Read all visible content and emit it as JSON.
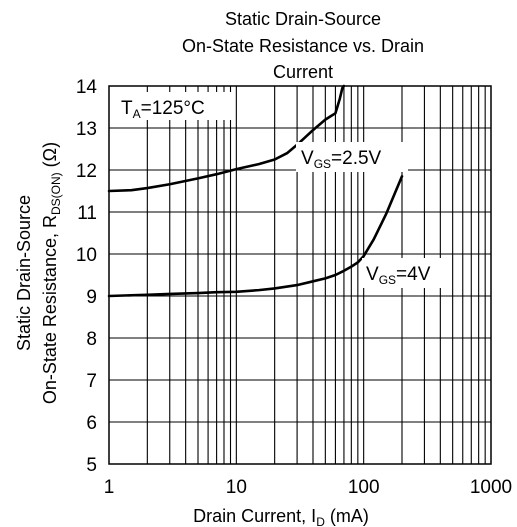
{
  "chart_data": {
    "type": "line",
    "title_lines": [
      "Static Drain-Source",
      "On-State Resistance vs. Drain",
      "Current"
    ],
    "xlabel": {
      "main": "Drain Current, I",
      "sub": "D",
      "unit": " (mA)"
    },
    "ylabel": {
      "line1": "Static Drain-Source",
      "line2_main": "On-State Resistance,  R",
      "line2_sub": "DS(ON)",
      "line2_unit": " (Ω)"
    },
    "x_scale": "log",
    "xlim": [
      1,
      1000
    ],
    "ylim": [
      5,
      14
    ],
    "x_ticks": [
      {
        "value": 1,
        "label": "1"
      },
      {
        "value": 10,
        "label": "10"
      },
      {
        "value": 100,
        "label": "100"
      },
      {
        "value": 1000,
        "label": "1000"
      }
    ],
    "y_ticks": [
      5,
      6,
      7,
      8,
      9,
      10,
      11,
      12,
      13,
      14
    ],
    "grid": true,
    "annotations": [
      {
        "id": "ta",
        "main": "T",
        "sub": "A",
        "rest": "=125°C"
      },
      {
        "id": "vgs25",
        "main": "V",
        "sub": "GS",
        "rest": "=2.5V"
      },
      {
        "id": "vgs4",
        "main": "V",
        "sub": "GS",
        "rest": "=4V"
      }
    ],
    "series": [
      {
        "name": "V_GS=2.5V",
        "x": [
          1,
          1.5,
          2,
          3,
          5,
          7,
          10,
          15,
          20,
          25,
          30,
          40,
          50,
          55,
          60,
          65,
          68,
          70
        ],
        "y": [
          11.5,
          11.52,
          11.57,
          11.66,
          11.8,
          11.9,
          12.02,
          12.14,
          12.25,
          12.4,
          12.6,
          12.95,
          13.2,
          13.28,
          13.35,
          13.7,
          13.95,
          14.0
        ]
      },
      {
        "name": "V_GS=4V",
        "x": [
          1,
          2,
          3,
          5,
          7,
          10,
          15,
          20,
          30,
          40,
          50,
          60,
          70,
          80,
          90,
          100,
          120,
          150,
          200
        ],
        "y": [
          9.0,
          9.03,
          9.05,
          9.07,
          9.09,
          9.1,
          9.14,
          9.18,
          9.26,
          9.35,
          9.42,
          9.5,
          9.6,
          9.7,
          9.8,
          9.95,
          10.35,
          10.95,
          11.85
        ]
      }
    ]
  }
}
